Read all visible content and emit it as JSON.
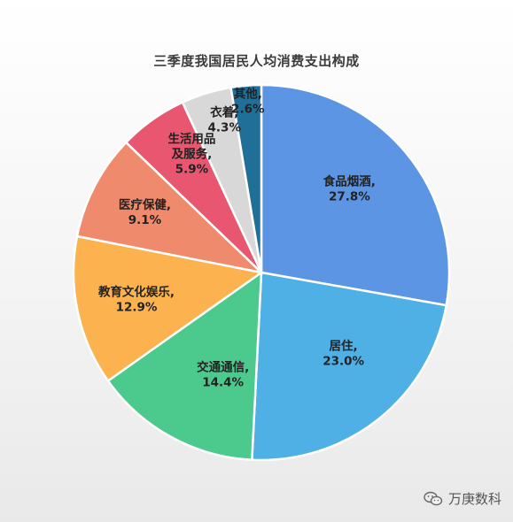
{
  "chart_data": {
    "type": "pie",
    "title": "三季度我国居民人均消费支出构成",
    "slices": [
      {
        "name": "食品烟酒",
        "value": 27.8,
        "label": "27.8%",
        "color": "#5b95e4"
      },
      {
        "name": "居住",
        "value": 23.0,
        "label": "23.0%",
        "color": "#4fb0e5"
      },
      {
        "name": "交通通信",
        "value": 14.4,
        "label": "14.4%",
        "color": "#4cc98c"
      },
      {
        "name": "教育文化娱乐",
        "value": 12.9,
        "label": "12.9%",
        "color": "#fcb24f"
      },
      {
        "name": "医疗保健",
        "value": 9.1,
        "label": "9.1%",
        "color": "#ef8a6c"
      },
      {
        "name": "生活用品及服务",
        "value": 5.9,
        "label": "5.9%",
        "color": "#e9566f"
      },
      {
        "name": "衣着",
        "value": 4.3,
        "label": "4.3%",
        "color": "#d8d8d8"
      },
      {
        "name": "其他",
        "value": 2.6,
        "label": "2.6%",
        "color": "#1f6f99"
      }
    ]
  },
  "watermark": {
    "text": "万庚数科",
    "icon": "wechat-icon"
  }
}
